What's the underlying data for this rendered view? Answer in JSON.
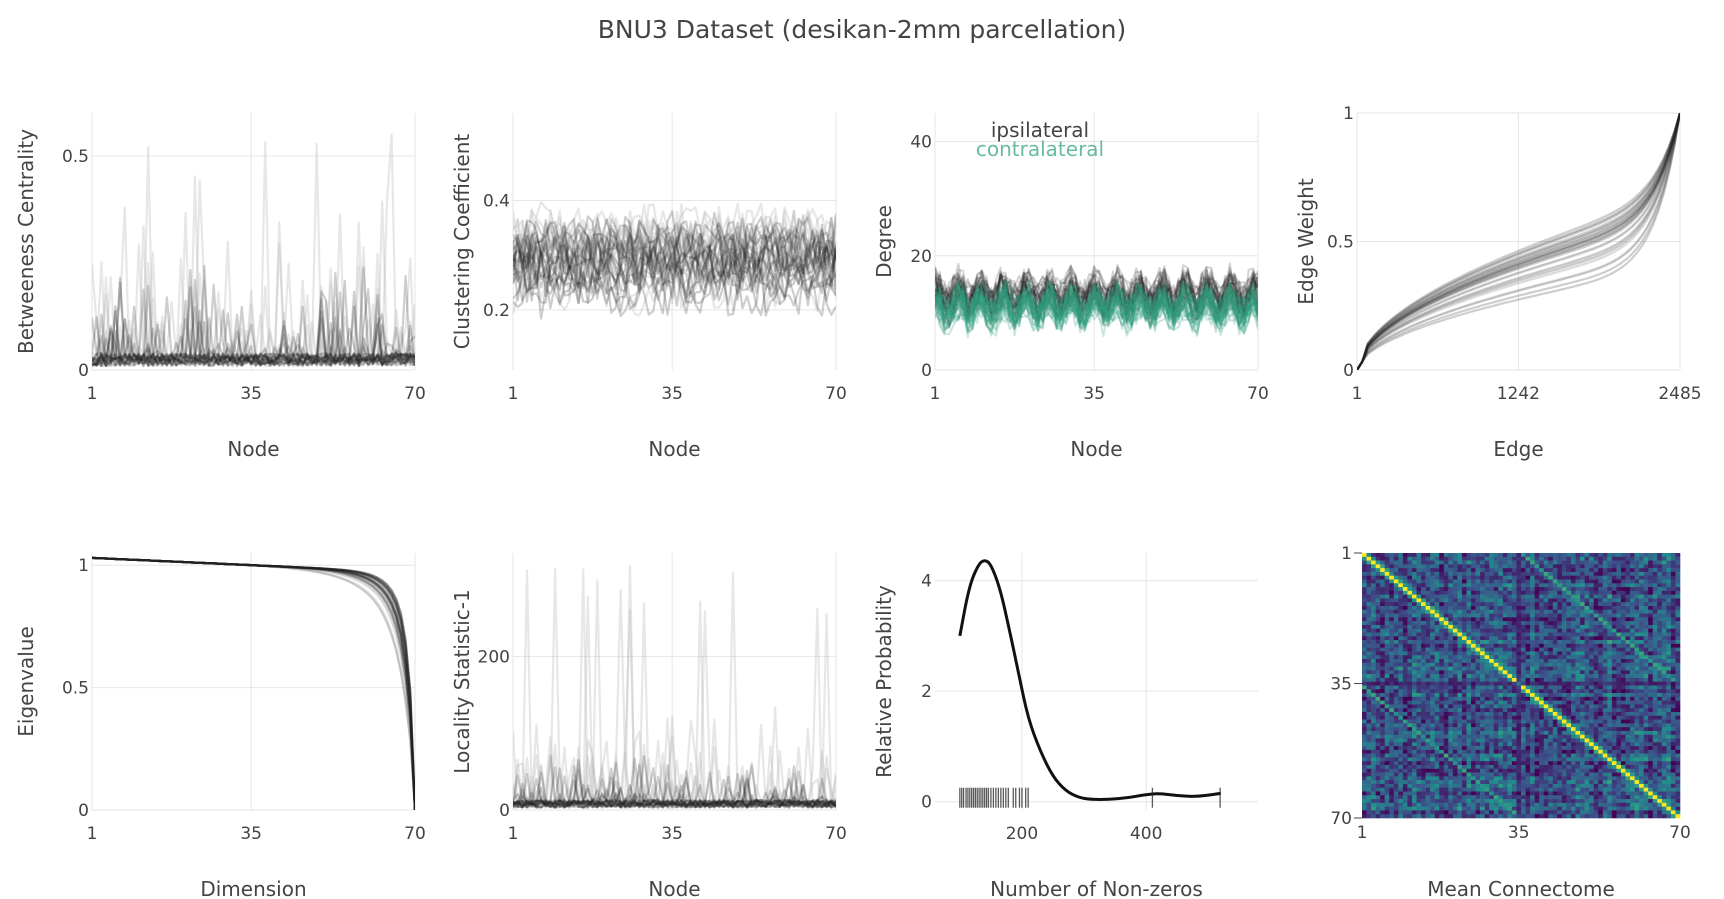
{
  "title": "BNU3 Dataset (desikan-2mm parcellation)",
  "colors": {
    "series_dark": "#222222",
    "series_light": "#bbbbbb",
    "contralateral": "#2a9d7a",
    "grid": "#e6e6e6",
    "heatmap_low": "#3b1d59",
    "heatmap_mid": "#2a7d8e",
    "heatmap_high": "#f4e32a"
  },
  "chart_data": [
    {
      "id": "betweenness",
      "type": "line",
      "xlabel": "Node",
      "ylabel": "Betweeness Centrality",
      "xticks": [
        "1",
        "35",
        "70"
      ],
      "xtick_values": [
        1,
        35,
        70
      ],
      "yticks": [
        "0",
        "0.5"
      ],
      "ytick_values": [
        0,
        0.5
      ],
      "xlim": [
        1,
        70
      ],
      "ylim": [
        0,
        0.6
      ],
      "n_series": 30,
      "series_shape": "spiky",
      "series_center": 0.03,
      "series_spread": 0.2,
      "peak_value": 0.58
    },
    {
      "id": "clustering",
      "type": "line",
      "xlabel": "Node",
      "ylabel": "Clustering Coefficient",
      "xticks": [
        "1",
        "35",
        "70"
      ],
      "xtick_values": [
        1,
        35,
        70
      ],
      "yticks": [
        "0.2",
        "0.4"
      ],
      "ytick_values": [
        0.2,
        0.4
      ],
      "xlim": [
        1,
        70
      ],
      "ylim": [
        0.09,
        0.56
      ],
      "n_series": 30,
      "series_shape": "noisy",
      "series_center": 0.29,
      "series_spread": 0.1
    },
    {
      "id": "degree",
      "type": "line",
      "xlabel": "Node",
      "ylabel": "Degree",
      "xticks": [
        "1",
        "35",
        "70"
      ],
      "xtick_values": [
        1,
        35,
        70
      ],
      "yticks": [
        "0",
        "20",
        "40"
      ],
      "ytick_values": [
        0,
        20,
        40
      ],
      "xlim": [
        1,
        70
      ],
      "ylim": [
        0,
        45
      ],
      "legend": [
        "ipsilateral",
        "contralateral"
      ],
      "legend_position": "top-center",
      "series": [
        {
          "name": "ipsilateral",
          "n_series": 30,
          "series_center": 13,
          "series_spread": 5
        },
        {
          "name": "contralateral",
          "n_series": 30,
          "series_center": 10.5,
          "series_spread": 4.5
        }
      ]
    },
    {
      "id": "edge_weight",
      "type": "line",
      "xlabel": "Edge",
      "ylabel": "Edge Weight",
      "xticks": [
        "1",
        "1242",
        "2485"
      ],
      "xtick_values": [
        1,
        1242,
        2485
      ],
      "yticks": [
        "0",
        "0.5",
        "1"
      ],
      "ytick_values": [
        0,
        0.5,
        1
      ],
      "xlim": [
        1,
        2485
      ],
      "ylim": [
        0,
        1
      ],
      "n_series": 30,
      "series_shape": "sorted-cdf",
      "mid_value_range": [
        0.3,
        0.55
      ]
    },
    {
      "id": "eigenvalue",
      "type": "line",
      "xlabel": "Dimension",
      "ylabel": "Eigenvalue",
      "xticks": [
        "1",
        "35",
        "70"
      ],
      "xtick_values": [
        1,
        35,
        70
      ],
      "yticks": [
        "0",
        "0.5",
        "1"
      ],
      "ytick_values": [
        0,
        0.5,
        1
      ],
      "xlim": [
        1,
        70
      ],
      "ylim": [
        0,
        1.05
      ],
      "n_series": 30,
      "series_shape": "decreasing",
      "start_value": 1.03,
      "end_value": 0.0
    },
    {
      "id": "locality",
      "type": "line",
      "xlabel": "Node",
      "ylabel": "Locality Statistic-1",
      "xticks": [
        "1",
        "35",
        "70"
      ],
      "xtick_values": [
        1,
        35,
        70
      ],
      "yticks": [
        "0",
        "200"
      ],
      "ytick_values": [
        0,
        200
      ],
      "xlim": [
        1,
        70
      ],
      "ylim": [
        0,
        335
      ],
      "n_series": 30,
      "series_shape": "spiky",
      "series_center": 10,
      "series_spread": 60,
      "peak_value": 330
    },
    {
      "id": "nonzeros",
      "type": "line",
      "xlabel": "Number of Non-zeros",
      "ylabel": "Relative Probability",
      "xticks": [
        "200",
        "400"
      ],
      "xtick_values": [
        200,
        400
      ],
      "yticks": [
        "0",
        "2",
        "4"
      ],
      "ytick_values": [
        0,
        2,
        4
      ],
      "xlim": [
        60,
        580
      ],
      "ylim": [
        -0.15,
        4.5
      ],
      "x": [
        100,
        115,
        130,
        140,
        150,
        165,
        180,
        195,
        210,
        230,
        250,
        270,
        290,
        310,
        340,
        370,
        400,
        420,
        450,
        480,
        520
      ],
      "y": [
        3.0,
        3.9,
        4.3,
        4.38,
        4.3,
        3.85,
        3.1,
        2.3,
        1.5,
        0.9,
        0.45,
        0.2,
        0.08,
        0.04,
        0.04,
        0.07,
        0.13,
        0.15,
        0.11,
        0.09,
        0.15
      ],
      "rug_x": [
        100,
        103,
        106,
        110,
        113,
        116,
        119,
        122,
        125,
        128,
        131,
        134,
        137,
        140,
        143,
        146,
        150,
        154,
        158,
        162,
        166,
        170,
        174,
        178,
        186,
        190,
        196,
        200,
        206,
        210,
        410,
        519
      ]
    },
    {
      "id": "connectome",
      "type": "heatmap",
      "xlabel": "Mean Connectome",
      "xticks": [
        "1",
        "35",
        "70"
      ],
      "xtick_values": [
        1,
        35,
        70
      ],
      "yticks": [
        "1",
        "35",
        "70"
      ],
      "ytick_values": [
        1,
        35,
        70
      ],
      "size": 70,
      "diagonal_value": 1.0,
      "offdiagonal_band_offsets": [
        35,
        -35
      ],
      "background_range": [
        0.05,
        0.55
      ]
    }
  ]
}
